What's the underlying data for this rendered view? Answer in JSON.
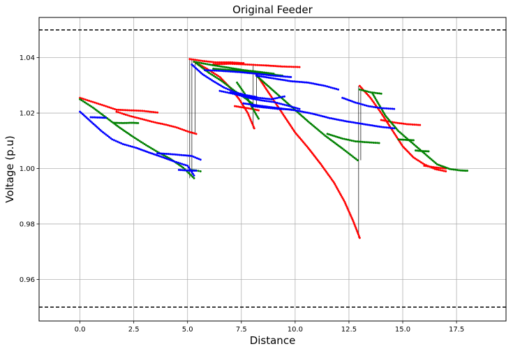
{
  "chart_data": {
    "type": "scatter",
    "title": "Original Feeder",
    "xlabel": "Distance",
    "ylabel": "Voltage (p.u)",
    "xlim": [
      -1.9,
      19.8
    ],
    "ylim": [
      0.945,
      1.0545
    ],
    "grid": true,
    "legend": "none",
    "xticks": [
      "0.0",
      "2.5",
      "5.0",
      "7.5",
      "10.0",
      "12.5",
      "15.0",
      "17.5"
    ],
    "xtick_values": [
      0,
      2.5,
      5,
      7.5,
      10,
      12.5,
      15,
      17.5
    ],
    "yticks": [
      "0.96",
      "0.98",
      "1.00",
      "1.02",
      "1.04"
    ],
    "ytick_values": [
      0.96,
      0.98,
      1.0,
      1.02,
      1.04
    ],
    "limit_lines": [
      1.05,
      0.95
    ],
    "colors": {
      "phase_a": "#ff0000",
      "phase_b": "#008000",
      "phase_c": "#0000ff",
      "branch": "#000000"
    },
    "series": [
      {
        "color": "red",
        "values": [
          {
            "x": [
              0.0,
              0.6,
              1.2,
              1.7,
              2.3,
              2.9,
              3.6
            ],
            "y": [
              1.0255,
              1.024,
              1.0225,
              1.0212,
              1.021,
              1.0208,
              1.0202
            ]
          },
          {
            "x": [
              1.7,
              2.3,
              2.9,
              3.5,
              4.0,
              4.5,
              5.0,
              5.4
            ],
            "y": [
              1.0205,
              1.019,
              1.0178,
              1.0166,
              1.0158,
              1.0148,
              1.0134,
              1.0125
            ]
          },
          {
            "x": [
              5.1,
              5.7,
              6.3,
              7.0,
              7.6
            ],
            "y": [
              1.0395,
              1.0388,
              1.0383,
              1.0383,
              1.038
            ]
          },
          {
            "x": [
              6.2,
              7.0,
              7.8,
              8.6,
              9.4,
              10.2
            ],
            "y": [
              1.0376,
              1.0378,
              1.0375,
              1.0372,
              1.0368,
              1.0366
            ]
          },
          {
            "x": [
              5.3,
              5.9,
              6.5,
              7.0,
              7.4,
              7.8,
              8.1
            ],
            "y": [
              1.0385,
              1.036,
              1.033,
              1.029,
              1.025,
              1.02,
              1.0145
            ]
          },
          {
            "x": [
              7.2,
              7.6,
              8.0,
              8.3
            ],
            "y": [
              1.0225,
              1.022,
              1.0215,
              1.021
            ]
          },
          {
            "x": [
              8.2,
              8.8,
              9.4,
              10.0,
              10.6,
              11.2,
              11.8,
              12.3,
              12.7,
              13.0
            ],
            "y": [
              1.034,
              1.027,
              1.02,
              1.013,
              1.0075,
              1.0015,
              0.995,
              0.988,
              0.981,
              0.975
            ]
          },
          {
            "x": [
              13.0,
              13.5,
              14.0,
              14.5,
              15.0,
              15.5,
              16.0,
              16.5,
              17.0
            ],
            "y": [
              1.0298,
              1.0255,
              1.02,
              1.014,
              1.008,
              1.004,
              1.0015,
              0.9998,
              0.999
            ]
          },
          {
            "x": [
              14.0,
              14.6,
              15.2,
              15.8
            ],
            "y": [
              1.0175,
              1.0166,
              1.016,
              1.0157
            ]
          },
          {
            "x": [
              16.0,
              16.5,
              17.0
            ],
            "y": [
              1.001,
              1.0004,
              1.0
            ]
          }
        ]
      },
      {
        "color": "green",
        "values": [
          {
            "x": [
              0.0,
              0.6,
              1.2,
              1.8,
              2.4,
              3.0,
              3.6,
              4.2,
              4.8,
              5.3
            ],
            "y": [
              1.025,
              1.022,
              1.0185,
              1.015,
              1.0118,
              1.0088,
              1.006,
              1.0035,
              1.0003,
              0.9965
            ]
          },
          {
            "x": [
              1.6,
              2.0,
              2.4,
              2.7
            ],
            "y": [
              1.0165,
              1.0164,
              1.0165,
              1.0164
            ]
          },
          {
            "x": [
              5.1,
              5.4,
              5.6
            ],
            "y": [
              0.9995,
              0.9993,
              0.999
            ]
          },
          {
            "x": [
              5.3,
              6.0,
              6.8,
              7.6,
              8.4,
              9.0
            ],
            "y": [
              1.0385,
              1.0375,
              1.0365,
              1.0355,
              1.0348,
              1.0342
            ]
          },
          {
            "x": [
              6.2,
              7.0,
              7.8,
              8.6,
              9.4
            ],
            "y": [
              1.036,
              1.0355,
              1.035,
              1.0342,
              1.0335
            ]
          },
          {
            "x": [
              5.4,
              6.0,
              6.6,
              7.1,
              7.6,
              8.0
            ],
            "y": [
              1.038,
              1.0345,
              1.0315,
              1.0285,
              1.0258,
              1.0235
            ]
          },
          {
            "x": [
              8.2,
              9.0,
              9.8,
              10.6,
              11.4,
              12.2,
              12.9
            ],
            "y": [
              1.0335,
              1.028,
              1.0225,
              1.017,
              1.0118,
              1.0072,
              1.003
            ]
          },
          {
            "x": [
              11.5,
              12.2,
              12.8,
              13.3,
              13.9
            ],
            "y": [
              1.0125,
              1.0108,
              1.0098,
              1.0095,
              1.0092
            ]
          },
          {
            "x": [
              13.0,
              13.5,
              14.0
            ],
            "y": [
              1.0285,
              1.0275,
              1.027
            ]
          },
          {
            "x": [
              13.6,
              14.2,
              14.8,
              15.4,
              16.0,
              16.6,
              17.2,
              17.7,
              18.0
            ],
            "y": [
              1.027,
              1.019,
              1.0135,
              1.0095,
              1.0055,
              1.0015,
              0.9998,
              0.9993,
              0.9992
            ]
          },
          {
            "x": [
              14.8,
              15.2,
              15.5
            ],
            "y": [
              1.0105,
              1.0103,
              1.0102
            ]
          },
          {
            "x": [
              15.6,
              15.9,
              16.2
            ],
            "y": [
              1.0065,
              1.0063,
              1.0062
            ]
          },
          {
            "x": [
              7.3,
              7.7,
              8.0,
              8.3
            ],
            "y": [
              1.031,
              1.0265,
              1.022,
              1.018
            ]
          }
        ]
      },
      {
        "color": "blue",
        "values": [
          {
            "x": [
              0.0,
              0.5,
              1.0,
              1.5,
              2.0,
              2.6,
              3.2,
              3.8,
              4.4,
              5.0,
              5.3
            ],
            "y": [
              1.0205,
              1.017,
              1.0135,
              1.0105,
              1.0088,
              1.0075,
              1.0058,
              1.0042,
              1.0025,
              1.001,
              0.9975
            ]
          },
          {
            "x": [
              0.5,
              0.9,
              1.2
            ],
            "y": [
              1.0185,
              1.0184,
              1.0183
            ]
          },
          {
            "x": [
              3.6,
              4.2,
              4.8,
              5.2,
              5.6
            ],
            "y": [
              1.0055,
              1.0052,
              1.0048,
              1.0045,
              1.0032
            ]
          },
          {
            "x": [
              4.6,
              5.0,
              5.4
            ],
            "y": [
              0.9995,
              0.9993,
              0.9992
            ]
          },
          {
            "x": [
              5.2,
              5.7,
              6.2,
              6.7,
              7.2,
              7.7,
              8.2
            ],
            "y": [
              1.0375,
              1.034,
              1.0315,
              1.0292,
              1.0275,
              1.0265,
              1.0258
            ]
          },
          {
            "x": [
              5.8,
              6.6,
              7.4,
              8.2,
              9.0,
              9.8
            ],
            "y": [
              1.0355,
              1.0352,
              1.0348,
              1.0342,
              1.0335,
              1.033
            ]
          },
          {
            "x": [
              7.0,
              7.5,
              8.0,
              8.5,
              9.0,
              9.6,
              10.2
            ],
            "y": [
              1.0275,
              1.0262,
              1.0252,
              1.0245,
              1.024,
              1.0228,
              1.0215
            ]
          },
          {
            "x": [
              6.5,
              7.1,
              7.7,
              8.3,
              8.9,
              9.5
            ],
            "y": [
              1.028,
              1.027,
              1.026,
              1.0255,
              1.025,
              1.026
            ]
          },
          {
            "x": [
              8.2,
              9.0,
              9.8,
              10.6,
              11.4,
              12.0
            ],
            "y": [
              1.0335,
              1.0325,
              1.0315,
              1.031,
              1.0298,
              1.0285
            ]
          },
          {
            "x": [
              12.2,
              12.8,
              13.4,
              14.0,
              14.6
            ],
            "y": [
              1.0255,
              1.0238,
              1.0225,
              1.0218,
              1.0215
            ]
          },
          {
            "x": [
              7.6,
              8.4,
              9.2,
              10.0,
              10.8,
              11.6,
              12.4,
              13.2,
              14.0,
              14.6
            ],
            "y": [
              1.0235,
              1.0226,
              1.0218,
              1.021,
              1.0198,
              1.0182,
              1.017,
              1.016,
              1.015,
              1.0145
            ]
          },
          {
            "x": [
              8.0,
              8.6,
              9.2,
              9.8
            ],
            "y": [
              1.0225,
              1.022,
              1.0215,
              1.0213
            ]
          }
        ]
      }
    ]
  }
}
